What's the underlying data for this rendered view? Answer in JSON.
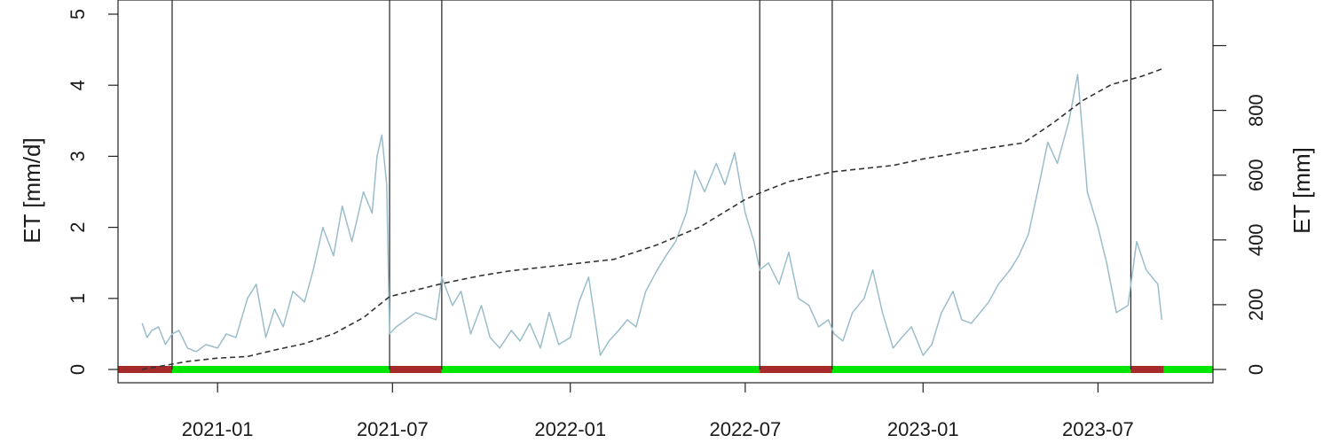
{
  "chart_data": {
    "type": "line",
    "title": "",
    "xlabel": "",
    "ylabel": "ET [mm/d]",
    "ylabel_right": "ET [mm]",
    "xlim": [
      "2020-09-20",
      "2023-10-28"
    ],
    "ylim": [
      0,
      5
    ],
    "ylim_right": [
      0,
      1100
    ],
    "grid": false,
    "legend": "none",
    "x_ticks": [
      "2021-01-01",
      "2021-07-01",
      "2022-01-01",
      "2022-07-01",
      "2023-01-01",
      "2023-07-01"
    ],
    "x_tick_labels": [
      "2021-01",
      "2021-07",
      "2022-01",
      "2022-07",
      "2023-01",
      "2023-07"
    ],
    "y_ticks": [
      0,
      1,
      2,
      3,
      4,
      5
    ],
    "y_tick_labels": [
      "0",
      "1",
      "2",
      "3",
      "4",
      "5"
    ],
    "y_right_ticks": [
      0,
      200,
      400,
      600,
      800,
      1000
    ],
    "y_right_tick_labels": [
      "0",
      "200",
      "400",
      "600",
      "800",
      ""
    ],
    "vertical_lines": [
      "2020-11-15",
      "2021-06-28",
      "2021-08-21",
      "2022-07-16",
      "2022-09-29",
      "2023-08-04"
    ],
    "colors": {
      "daily": "#9bbdcb",
      "cumulative": "#333333",
      "bar_red": "#a52a2a",
      "bar_green": "#00e600",
      "vline": "#222222"
    },
    "periods": [
      {
        "start": "2020-09-20",
        "end": "2020-11-15",
        "status": "red"
      },
      {
        "start": "2020-11-15",
        "end": "2021-06-28",
        "status": "green"
      },
      {
        "start": "2021-06-28",
        "end": "2021-08-21",
        "status": "red"
      },
      {
        "start": "2021-08-21",
        "end": "2022-07-16",
        "status": "green"
      },
      {
        "start": "2022-07-16",
        "end": "2022-09-29",
        "status": "red"
      },
      {
        "start": "2022-09-29",
        "end": "2023-08-04",
        "status": "green"
      },
      {
        "start": "2023-08-04",
        "end": "2023-09-07",
        "status": "red"
      },
      {
        "start": "2023-09-07",
        "end": "2023-10-28",
        "status": "green"
      }
    ],
    "series": [
      {
        "axis": "left",
        "style": "solid",
        "x": [
          "2020-10-15",
          "2020-10-20",
          "2020-10-25",
          "2020-11-01",
          "2020-11-08",
          "2020-11-15",
          "2020-11-22",
          "2020-12-01",
          "2020-12-10",
          "2020-12-20",
          "2021-01-01",
          "2021-01-10",
          "2021-01-20",
          "2021-02-01",
          "2021-02-10",
          "2021-02-20",
          "2021-03-01",
          "2021-03-10",
          "2021-03-20",
          "2021-04-01",
          "2021-04-10",
          "2021-04-20",
          "2021-05-01",
          "2021-05-10",
          "2021-05-20",
          "2021-06-01",
          "2021-06-10",
          "2021-06-15",
          "2021-06-20",
          "2021-06-25",
          "2021-06-28",
          "2021-07-05",
          "2021-07-15",
          "2021-07-25",
          "2021-08-05",
          "2021-08-15",
          "2021-08-21",
          "2021-09-01",
          "2021-09-10",
          "2021-09-20",
          "2021-10-01",
          "2021-10-10",
          "2021-10-20",
          "2021-11-01",
          "2021-11-10",
          "2021-11-20",
          "2021-12-01",
          "2021-12-10",
          "2021-12-20",
          "2022-01-01",
          "2022-01-10",
          "2022-01-20",
          "2022-02-01",
          "2022-02-10",
          "2022-02-20",
          "2022-03-01",
          "2022-03-10",
          "2022-03-20",
          "2022-04-01",
          "2022-04-10",
          "2022-04-20",
          "2022-05-01",
          "2022-05-10",
          "2022-05-20",
          "2022-06-01",
          "2022-06-10",
          "2022-06-20",
          "2022-07-01",
          "2022-07-10",
          "2022-07-16",
          "2022-07-25",
          "2022-08-05",
          "2022-08-15",
          "2022-08-25",
          "2022-09-05",
          "2022-09-15",
          "2022-09-25",
          "2022-10-01",
          "2022-10-10",
          "2022-10-20",
          "2022-11-01",
          "2022-11-10",
          "2022-11-20",
          "2022-12-01",
          "2022-12-10",
          "2022-12-20",
          "2023-01-01",
          "2023-01-10",
          "2023-01-20",
          "2023-02-01",
          "2023-02-10",
          "2023-02-20",
          "2023-03-01",
          "2023-03-10",
          "2023-03-20",
          "2023-04-01",
          "2023-04-10",
          "2023-04-20",
          "2023-05-01",
          "2023-05-10",
          "2023-05-20",
          "2023-06-01",
          "2023-06-10",
          "2023-06-20",
          "2023-07-01",
          "2023-07-10",
          "2023-07-20",
          "2023-08-01",
          "2023-08-10",
          "2023-08-20",
          "2023-09-01",
          "2023-09-05"
        ],
        "y": [
          0.65,
          0.45,
          0.55,
          0.6,
          0.35,
          0.5,
          0.55,
          0.3,
          0.25,
          0.35,
          0.3,
          0.5,
          0.45,
          1.0,
          1.2,
          0.45,
          0.85,
          0.6,
          1.1,
          0.95,
          1.4,
          2.0,
          1.6,
          2.3,
          1.8,
          2.5,
          2.2,
          3.0,
          3.3,
          2.6,
          0.5,
          0.6,
          0.7,
          0.8,
          0.75,
          0.7,
          1.3,
          0.9,
          1.1,
          0.5,
          0.9,
          0.45,
          0.3,
          0.55,
          0.4,
          0.65,
          0.3,
          0.8,
          0.35,
          0.45,
          0.95,
          1.3,
          0.2,
          0.4,
          0.55,
          0.7,
          0.6,
          1.1,
          1.4,
          1.6,
          1.8,
          2.2,
          2.8,
          2.5,
          2.9,
          2.6,
          3.05,
          2.2,
          1.8,
          1.4,
          1.5,
          1.2,
          1.65,
          1.0,
          0.9,
          0.6,
          0.7,
          0.5,
          0.4,
          0.8,
          1.0,
          1.4,
          0.8,
          0.3,
          0.45,
          0.6,
          0.2,
          0.35,
          0.8,
          1.1,
          0.7,
          0.65,
          0.8,
          0.95,
          1.2,
          1.4,
          1.6,
          1.9,
          2.6,
          3.2,
          2.9,
          3.5,
          4.15,
          2.5,
          2.0,
          1.5,
          0.8,
          0.9,
          1.8,
          1.4,
          1.2,
          0.7
        ]
      },
      {
        "axis": "right",
        "style": "dashed",
        "x": [
          "2020-10-15",
          "2020-12-01",
          "2021-01-01",
          "2021-02-01",
          "2021-03-01",
          "2021-04-01",
          "2021-05-01",
          "2021-06-01",
          "2021-06-28",
          "2021-08-21",
          "2021-10-01",
          "2021-11-01",
          "2022-01-01",
          "2022-02-15",
          "2022-04-01",
          "2022-05-15",
          "2022-07-01",
          "2022-07-16",
          "2022-08-15",
          "2022-09-29",
          "2022-12-01",
          "2023-01-01",
          "2023-03-01",
          "2023-04-15",
          "2023-05-15",
          "2023-06-15",
          "2023-07-15",
          "2023-08-15",
          "2023-09-07"
        ],
        "y": [
          0,
          25,
          35,
          40,
          60,
          80,
          110,
          160,
          225,
          265,
          290,
          305,
          325,
          340,
          385,
          440,
          525,
          545,
          580,
          610,
          630,
          650,
          680,
          700,
          760,
          830,
          880,
          905,
          930
        ]
      }
    ]
  }
}
